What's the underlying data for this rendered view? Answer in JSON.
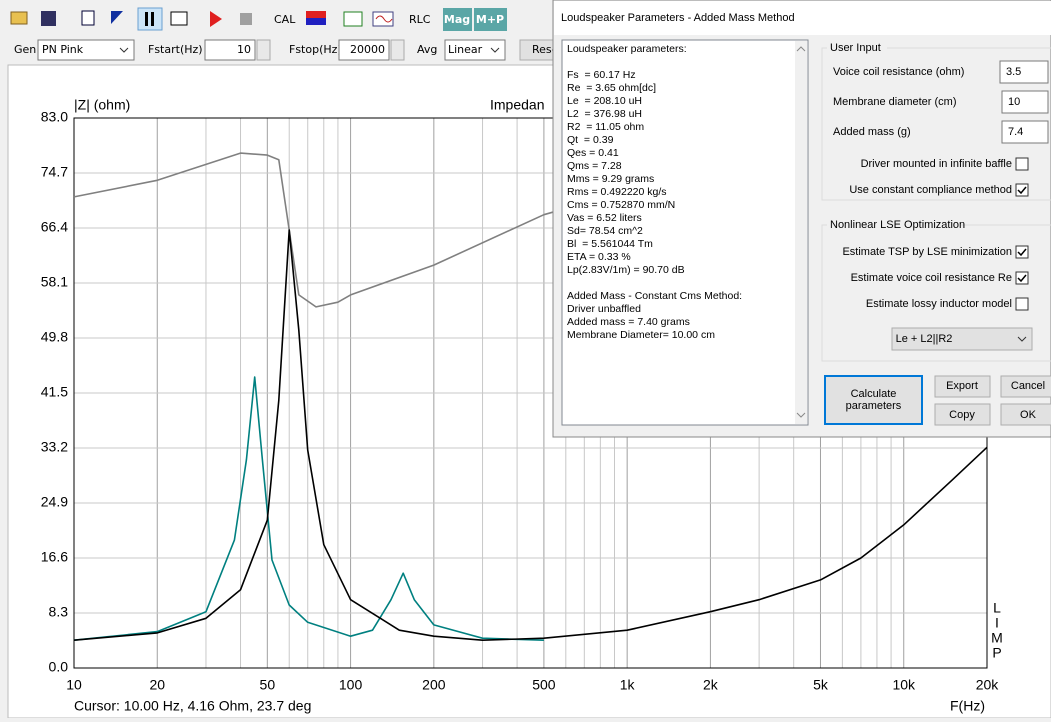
{
  "toolbar": {
    "buttons": [
      "CAL",
      "RLC",
      "Mag",
      "M+P"
    ]
  },
  "controls": {
    "gen_label": "Gen",
    "gen_value": "PN Pink",
    "fstart_label": "Fstart(Hz)",
    "fstart_value": "10",
    "fstop_label": "Fstop(Hz)",
    "fstop_value": "20000",
    "avg_label": "Avg",
    "avg_value": "Linear",
    "reset_button": "Rese"
  },
  "chart_data": {
    "type": "line",
    "title": "Impedan",
    "y_label": "|Z| (ohm)",
    "x_label": "F(Hz)",
    "log_x": true,
    "grid": true,
    "xlim": [
      10,
      20000
    ],
    "xticks": [
      10,
      20,
      50,
      100,
      200,
      500,
      {
        "value": 1000,
        "label": "1k"
      },
      {
        "value": 2000,
        "label": "2k"
      },
      {
        "value": 5000,
        "label": "5k"
      },
      {
        "value": 10000,
        "label": "10k"
      },
      {
        "value": 20000,
        "label": "20k"
      }
    ],
    "minor_xticks": [
      30,
      40,
      60,
      70,
      80,
      90,
      300,
      400,
      600,
      700,
      800,
      900,
      3000,
      4000,
      6000,
      7000,
      8000,
      9000
    ],
    "ylim": [
      0,
      83
    ],
    "yticks": [
      {
        "value": 0,
        "label": "0.0"
      },
      8.3,
      16.6,
      24.9,
      33.2,
      41.5,
      49.8,
      58.1,
      66.4,
      74.7,
      {
        "value": 83,
        "label": "83.0"
      }
    ],
    "series": [
      {
        "color": "#808080",
        "x": [
          10,
          20,
          40,
          50,
          55,
          60,
          65,
          75,
          90,
          100,
          200,
          500,
          560
        ],
        "values": [
          71.1,
          73.6,
          77.7,
          77.4,
          76.7,
          66.1,
          56.3,
          54.5,
          55.2,
          56.3,
          60.8,
          68.4,
          69.0
        ]
      },
      {
        "color": "#008080",
        "x": [
          10,
          20,
          30,
          38,
          42,
          45,
          48,
          52,
          60,
          70,
          100,
          120,
          140,
          155,
          170,
          200,
          300,
          500
        ],
        "values": [
          4.2,
          5.5,
          8.5,
          19.3,
          31.4,
          43.9,
          31.4,
          16.3,
          9.5,
          6.9,
          4.8,
          5.7,
          10.3,
          14.3,
          10.3,
          6.5,
          4.5,
          4.2
        ]
      },
      {
        "color": "#000000",
        "x": [
          10,
          20,
          30,
          40,
          50,
          55,
          60,
          65,
          70,
          80,
          100,
          150,
          200,
          300,
          500,
          1000,
          2000,
          3000,
          5000,
          7000,
          10000,
          15000,
          20000
        ],
        "values": [
          4.2,
          5.3,
          7.5,
          11.8,
          22.3,
          40.4,
          66.1,
          51.0,
          32.9,
          18.6,
          10.3,
          5.7,
          4.8,
          4.2,
          4.5,
          5.7,
          8.5,
          10.3,
          13.3,
          16.6,
          21.6,
          28.4,
          33.3
        ]
      }
    ],
    "side_letters": [
      "L",
      "I",
      "M",
      "P"
    ],
    "cursor_text": "Cursor: 10.00 Hz, 4.16 Ohm, 23.7 deg"
  },
  "dialog": {
    "title": "Loudspeaker Parameters - Added Mass Method",
    "results_heading": "Loudspeaker parameters:",
    "params": [
      "Fs  = 60.17 Hz",
      "Re  = 3.65 ohm[dc]",
      "Le  = 208.10 uH",
      "L2  = 376.98 uH",
      "R2  = 11.05 ohm",
      "Qt  = 0.39",
      "Qes = 0.41",
      "Qms = 7.28",
      "Mms = 9.29 grams",
      "Rms = 0.492220 kg/s",
      "Cms = 0.752870 mm/N",
      "Vas = 6.52 liters",
      "Sd= 78.54 cm^2",
      "Bl  = 5.561044 Tm",
      "ETA = 0.33 %",
      "Lp(2.83V/1m) = 90.70 dB"
    ],
    "method": [
      "Added Mass - Constant Cms Method:",
      "Driver unbaffled",
      "Added mass = 7.40 grams",
      "Membrane Diameter= 10.00 cm"
    ],
    "user_input": {
      "title": "User Input",
      "fields": [
        {
          "label": "Voice coil resistance (ohm)",
          "value": "3.5"
        },
        {
          "label": "Membrane diameter (cm)",
          "value": "10"
        },
        {
          "label": "Added mass (g)",
          "value": "7.4"
        }
      ],
      "checks": [
        {
          "label": "Driver mounted in infinite baffle",
          "checked": false
        },
        {
          "label": "Use constant compliance method",
          "checked": true
        }
      ]
    },
    "lse": {
      "title": "Nonlinear LSE Optimization",
      "checks": [
        {
          "label": "Estimate TSP by LSE minimization",
          "checked": true
        },
        {
          "label": "Estimate voice coil resistance Re",
          "checked": true
        },
        {
          "label": "Estimate lossy inductor model",
          "checked": false
        }
      ],
      "model": "Le + L2||R2"
    },
    "buttons": {
      "calculate": "Calculate parameters",
      "export": "Export",
      "cancel": "Cancel",
      "copy": "Copy",
      "ok": "OK"
    }
  }
}
